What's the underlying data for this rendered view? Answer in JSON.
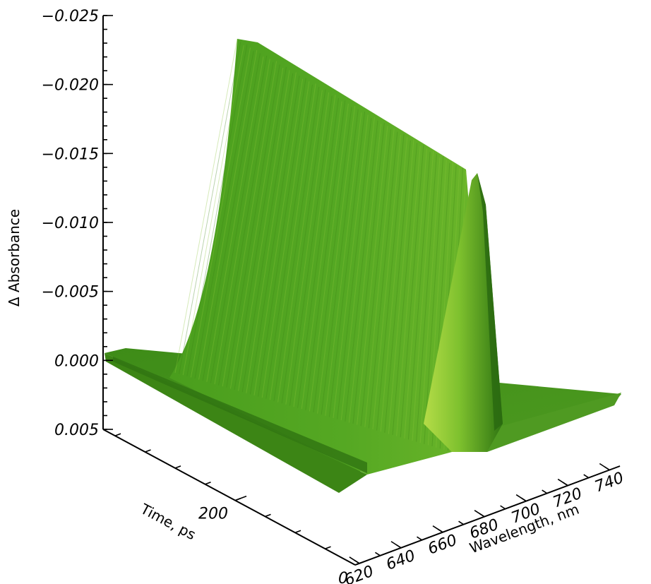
{
  "chart_data": {
    "type": "surface",
    "title": "",
    "xlabel": "Wavelength, nm",
    "ylabel": "Time, ps",
    "zlabel": "Δ Absorbance",
    "x_ticks": [
      620,
      640,
      660,
      680,
      700,
      720,
      740
    ],
    "x_tick_labels": [
      "620",
      "640",
      "660",
      "680",
      "700",
      "720",
      "740"
    ],
    "y_ticks": [
      0,
      200
    ],
    "y_tick_labels": [
      "0",
      "200"
    ],
    "z_ticks": [
      0.005,
      0.0,
      -0.005,
      -0.01,
      -0.015,
      -0.02,
      -0.025
    ],
    "z_tick_labels": [
      "0.005",
      "0.000",
      "−0.005",
      "−0.010",
      "−0.015",
      "−0.020",
      "−0.025"
    ],
    "xlim": [
      618,
      745
    ],
    "ylim": [
      0,
      420
    ],
    "zlim": [
      0.005,
      -0.025
    ],
    "z_axis_inverted": true,
    "surface_color": "#3f9a1a",
    "surface_highlight": "#a6d23a",
    "surface_shadow": "#2c6e12",
    "peak": {
      "wavelength_nm": 668,
      "max_delta_absorbance": -0.0235,
      "end_delta_absorbance": -0.0135
    }
  }
}
